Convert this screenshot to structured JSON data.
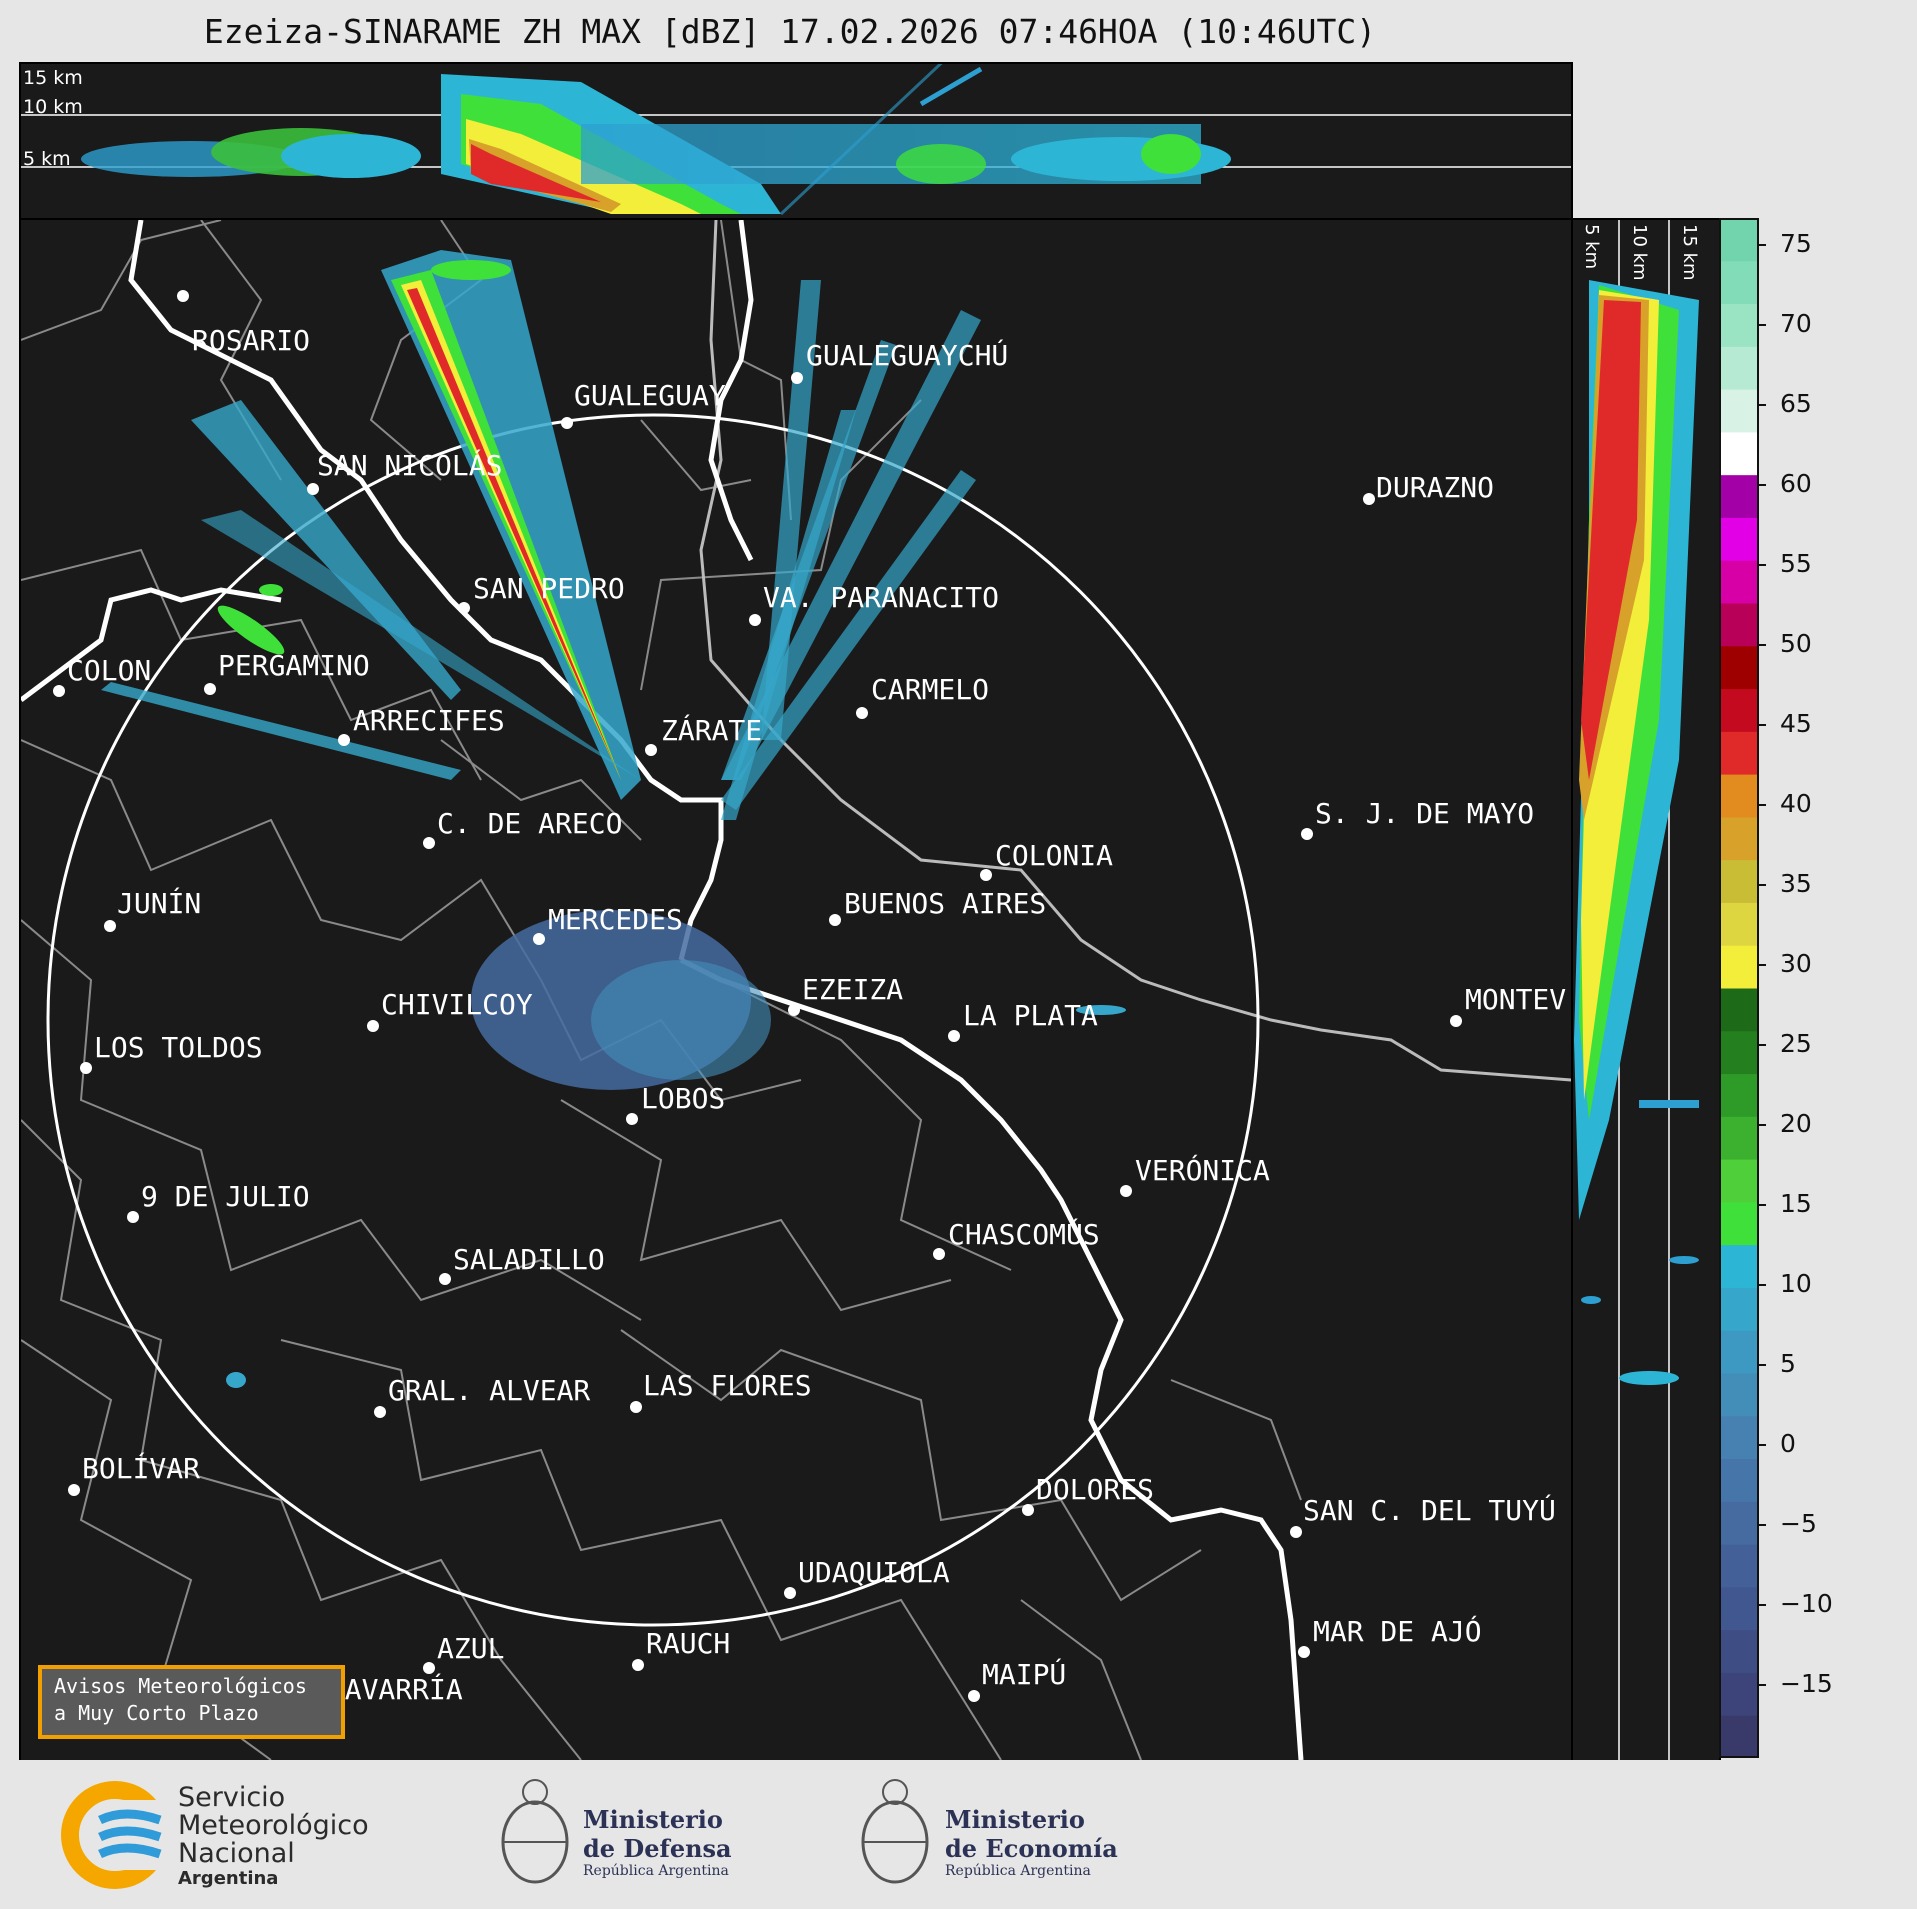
{
  "title": "Ezeiza-SINARAME ZH MAX [dBZ] 17.02.2026 07:46HOA (10:46UTC)",
  "top_panel": {
    "height_labels": [
      "15 km",
      "10 km",
      "5 km"
    ]
  },
  "side_panel": {
    "height_labels": [
      "5 km",
      "10 km",
      "15 km"
    ]
  },
  "cities": [
    {
      "name": "ROSARIO"
    },
    {
      "name": "GUALEGUAYCHÚ"
    },
    {
      "name": "GUALEGUAY"
    },
    {
      "name": "SAN NICOLÁS"
    },
    {
      "name": "DURAZNO"
    },
    {
      "name": "SAN PEDRO"
    },
    {
      "name": "VA. PARANACITO"
    },
    {
      "name": "COLON"
    },
    {
      "name": "PERGAMINO"
    },
    {
      "name": "CARMELO"
    },
    {
      "name": "ARRECIFES"
    },
    {
      "name": "ZÁRATE"
    },
    {
      "name": "S. J. DE MAYO"
    },
    {
      "name": "C. DE ARECO"
    },
    {
      "name": "COLONIA"
    },
    {
      "name": "JUNÍN"
    },
    {
      "name": "BUENOS AIRES"
    },
    {
      "name": "MERCEDES"
    },
    {
      "name": "EZEIZA"
    },
    {
      "name": "MONTEV"
    },
    {
      "name": "CHIVILCOY"
    },
    {
      "name": "LA PLATA"
    },
    {
      "name": "LOS TOLDOS"
    },
    {
      "name": "LOBOS"
    },
    {
      "name": "VERÓNICA"
    },
    {
      "name": "9 DE JULIO"
    },
    {
      "name": "CHASCOMÚS"
    },
    {
      "name": "SALADILLO"
    },
    {
      "name": "GRAL. ALVEAR"
    },
    {
      "name": "LAS FLORES"
    },
    {
      "name": "BOLÍVAR"
    },
    {
      "name": "DOLORES"
    },
    {
      "name": "SAN C. DEL TUYÚ"
    },
    {
      "name": "UDAQUIOLA"
    },
    {
      "name": "MAR DE AJÓ"
    },
    {
      "name": "AZUL"
    },
    {
      "name": "RAUCH"
    },
    {
      "name": "MAIPÚ"
    },
    {
      "name": "OLAVARRÍA"
    }
  ],
  "colorbar": {
    "ticks": [
      "75",
      "70",
      "65",
      "60",
      "55",
      "50",
      "45",
      "40",
      "35",
      "30",
      "25",
      "20",
      "15",
      "10",
      "5",
      "0",
      "−5",
      "−10",
      "−15"
    ],
    "colors": [
      "#3a3a6a",
      "#3d4479",
      "#3f4d85",
      "#41578f",
      "#436198",
      "#456ba1",
      "#4676a9",
      "#4681b1",
      "#438db9",
      "#3e99c2",
      "#36a7cb",
      "#2db5d6",
      "#3fe03a",
      "#4fcf3a",
      "#3cb02f",
      "#2e9a27",
      "#24801f",
      "#1d6a18",
      "#f2ee3a",
      "#ddd640",
      "#c9bd36",
      "#d8a12a",
      "#e28b1e",
      "#e02a2a",
      "#c40a1e",
      "#9e0000",
      "#b80058",
      "#d600a6",
      "#e200e6",
      "#a400a8",
      "#ffffff",
      "#d8f2e6",
      "#b6ead2",
      "#9ae4c4",
      "#82dcb8",
      "#72d4ad"
    ],
    "accent": "#f2a000"
  },
  "warning_box": {
    "line1": "Avisos Meteorológicos",
    "line2": "a Muy Corto Plazo"
  },
  "footer": {
    "smn": {
      "l1": "Servicio",
      "l2": "Meteorológico",
      "l3": "Nacional",
      "l4": "Argentina"
    },
    "defensa": {
      "l1": "Ministerio",
      "l2": "de Defensa",
      "l3": "República Argentina"
    },
    "economia": {
      "l1": "Ministerio",
      "l2": "de Economía",
      "l3": "República Argentina"
    }
  }
}
